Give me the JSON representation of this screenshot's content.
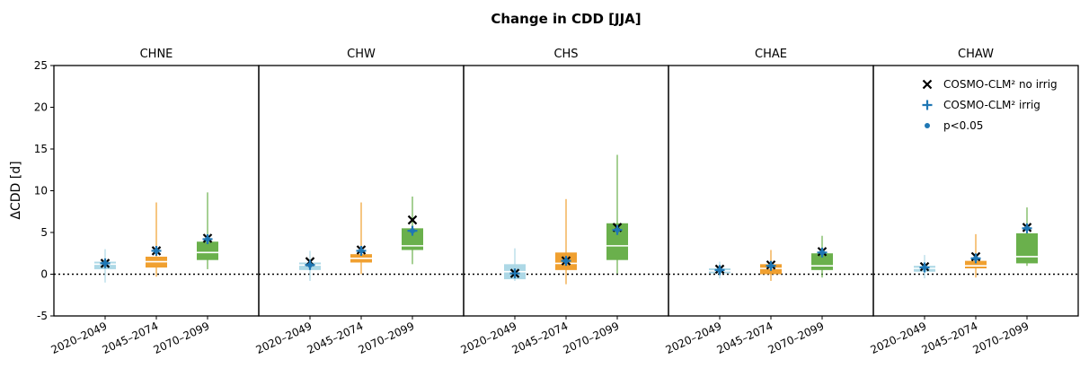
{
  "chart_data": {
    "type": "box",
    "title": "Change in CDD [JJA]",
    "ylabel": "ΔCDD [d]",
    "ylim": [
      -5,
      25
    ],
    "yticks": [
      -5,
      0,
      5,
      10,
      15,
      20,
      25
    ],
    "categories": [
      "2020–2049",
      "2045–2074",
      "2070–2099"
    ],
    "category_colors": [
      "#add8e6",
      "#f0a030",
      "#6ab04c"
    ],
    "reference_line": 0,
    "legend": {
      "placement": "top-right",
      "entries": [
        {
          "key": "no_irrig",
          "label": "COSMO-CLM² no irrig",
          "marker": "x",
          "color": "#000000"
        },
        {
          "key": "irrig",
          "label": "COSMO-CLM² irrig",
          "marker": "+",
          "color": "#1f77b4"
        },
        {
          "key": "sig",
          "label": "p<0.05",
          "marker": "dot",
          "color": "#1f77b4"
        }
      ]
    },
    "panels": [
      {
        "title": "CHNE",
        "boxes": [
          {
            "whislo": -1.0,
            "q1": 0.6,
            "med": 1.2,
            "q3": 1.5,
            "whishi": 3.0
          },
          {
            "whislo": -0.3,
            "q1": 0.8,
            "med": 1.5,
            "q3": 2.1,
            "whishi": 8.6
          },
          {
            "whislo": 0.6,
            "q1": 1.7,
            "med": 2.6,
            "q3": 3.9,
            "whishi": 9.8
          }
        ],
        "no_irrig": [
          1.3,
          2.8,
          4.3
        ],
        "irrig": [
          1.3,
          2.8,
          4.2
        ],
        "sig": [
          true,
          true,
          true
        ]
      },
      {
        "title": "CHW",
        "boxes": [
          {
            "whislo": -0.8,
            "q1": 0.5,
            "med": 1.1,
            "q3": 1.4,
            "whishi": 2.8
          },
          {
            "whislo": 0.0,
            "q1": 1.4,
            "med": 1.9,
            "q3": 2.4,
            "whishi": 8.6
          },
          {
            "whislo": 1.2,
            "q1": 2.9,
            "med": 3.4,
            "q3": 5.5,
            "whishi": 9.3
          }
        ],
        "no_irrig": [
          1.5,
          2.9,
          6.5
        ],
        "irrig": [
          1.1,
          2.8,
          5.2
        ],
        "sig": [
          true,
          true,
          true
        ]
      },
      {
        "title": "CHS",
        "boxes": [
          {
            "whislo": -0.8,
            "q1": -0.6,
            "med": 0.3,
            "q3": 1.2,
            "whishi": 3.1
          },
          {
            "whislo": -1.2,
            "q1": 0.5,
            "med": 1.3,
            "q3": 2.6,
            "whishi": 9.0
          },
          {
            "whislo": 0.1,
            "q1": 1.7,
            "med": 3.4,
            "q3": 6.1,
            "whishi": 14.3
          }
        ],
        "no_irrig": [
          0.1,
          1.6,
          5.6
        ],
        "irrig": [
          0.1,
          1.6,
          5.3
        ],
        "sig": [
          false,
          true,
          true
        ]
      },
      {
        "title": "CHAE",
        "boxes": [
          {
            "whislo": -0.5,
            "q1": 0.1,
            "med": 0.4,
            "q3": 0.7,
            "whishi": 1.5
          },
          {
            "whislo": -0.8,
            "q1": 0.0,
            "med": 0.7,
            "q3": 1.2,
            "whishi": 2.9
          },
          {
            "whislo": -0.4,
            "q1": 0.5,
            "med": 1.0,
            "q3": 2.5,
            "whishi": 4.6
          }
        ],
        "no_irrig": [
          0.6,
          1.1,
          2.7
        ],
        "irrig": [
          0.5,
          1.0,
          2.6
        ],
        "sig": [
          true,
          true,
          true
        ]
      },
      {
        "title": "CHAW",
        "boxes": [
          {
            "whislo": -0.5,
            "q1": 0.3,
            "med": 0.7,
            "q3": 1.0,
            "whishi": 2.3
          },
          {
            "whislo": -0.4,
            "q1": 0.7,
            "med": 1.0,
            "q3": 1.6,
            "whishi": 4.8
          },
          {
            "whislo": 1.0,
            "q1": 1.3,
            "med": 2.1,
            "q3": 4.9,
            "whishi": 8.0
          }
        ],
        "no_irrig": [
          0.9,
          2.1,
          5.6
        ],
        "irrig": [
          0.8,
          1.9,
          5.5
        ],
        "sig": [
          true,
          true,
          true
        ]
      }
    ]
  }
}
